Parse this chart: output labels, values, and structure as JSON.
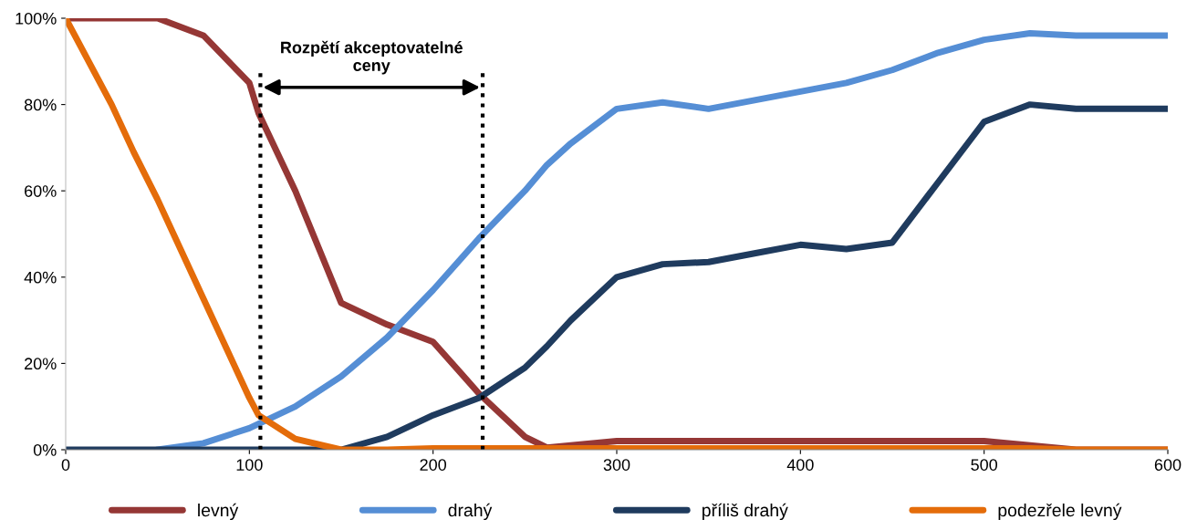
{
  "chart_data": {
    "type": "line",
    "x": [
      0,
      25,
      37,
      50,
      75,
      100,
      105,
      125,
      150,
      175,
      200,
      225,
      250,
      262,
      275,
      300,
      325,
      350,
      375,
      400,
      425,
      450,
      475,
      500,
      525,
      550,
      575,
      600
    ],
    "series": [
      {
        "name": "levný",
        "color": "#953735",
        "values": [
          100,
          100,
          100,
          100,
          96,
          85,
          78,
          60,
          34,
          29,
          25,
          13,
          3,
          0.5,
          1,
          2,
          2,
          2,
          2,
          2,
          2,
          2,
          2,
          2,
          1,
          0,
          0,
          0
        ]
      },
      {
        "name": "drahý",
        "color": "#558ed5",
        "values": [
          null,
          null,
          null,
          0,
          1.5,
          5,
          6,
          10,
          17,
          26,
          37,
          49,
          60,
          66,
          71,
          79,
          80.5,
          79,
          81,
          83,
          85,
          88,
          92,
          95,
          96.5,
          96,
          96,
          96
        ]
      },
      {
        "name": "příliš drahý",
        "color": "#1f3b5e",
        "values": [
          0,
          0,
          0,
          0,
          0,
          0,
          0,
          0,
          0,
          3,
          8,
          12,
          19,
          24,
          30,
          40,
          43,
          43.5,
          45.5,
          47.5,
          46.5,
          48,
          62,
          76,
          80,
          79,
          79,
          79
        ]
      },
      {
        "name": "podezřele levný",
        "color": "#e46c0a",
        "values": [
          100,
          80,
          69,
          58,
          35,
          12,
          8,
          2.5,
          0,
          0,
          0.3,
          0.3,
          0.3,
          0.3,
          0.3,
          0.3,
          0.3,
          0.3,
          0.3,
          0.3,
          0.3,
          0.3,
          0.3,
          0.3,
          0.3,
          0,
          0,
          0
        ]
      }
    ],
    "xlim": [
      0,
      600
    ],
    "xticks": [
      0,
      100,
      200,
      300,
      400,
      500,
      600
    ],
    "ylim": [
      0,
      100
    ],
    "yticks": [
      {
        "value": 0,
        "label": "0%"
      },
      {
        "value": 20,
        "label": "20%"
      },
      {
        "value": 40,
        "label": "40%"
      },
      {
        "value": 60,
        "label": "60%"
      },
      {
        "value": 80,
        "label": "80%"
      },
      {
        "value": 100,
        "label": "100%"
      }
    ],
    "ref_lines": [
      {
        "axis": "x",
        "value": 106,
        "color": "#000000",
        "line_style": "dotted"
      },
      {
        "axis": "x",
        "value": 227,
        "color": "#000000",
        "line_style": "dotted"
      }
    ],
    "annotations": [
      "Rozpětí akceptovatelné\nceny"
    ],
    "grid": false,
    "legend": "bottom",
    "marker": "none",
    "line_style": "solid"
  }
}
